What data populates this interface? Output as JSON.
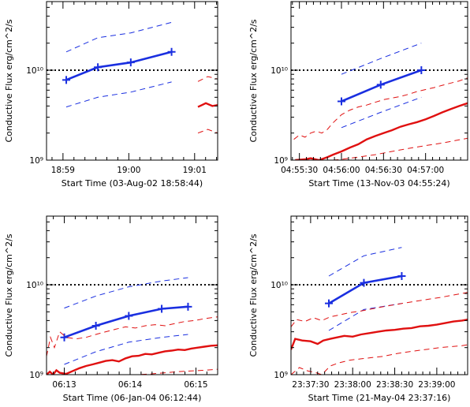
{
  "colors": {
    "axis": "#000000",
    "blue": "#1a2fe0",
    "red": "#e01010",
    "ref": "#000000"
  },
  "chart_data": [
    {
      "type": "line",
      "ylabel": "Conductive Flux erg/cm^2/s",
      "xlabel": "Start Time (03-Aug-02 18:58:44)",
      "y_scale": "log",
      "ylim": [
        1000000000.0,
        58000000000.0
      ],
      "y_ticks": [
        {
          "value": 1000000000.0,
          "label": "10⁹"
        },
        {
          "value": 10000000000.0,
          "label": "10¹⁰"
        }
      ],
      "xlim": [
        0,
        2.6
      ],
      "x_ticks": [
        {
          "value": 0.25,
          "label": "18:59"
        },
        {
          "value": 1.25,
          "label": "19:00"
        },
        {
          "value": 2.25,
          "label": "19:01"
        }
      ],
      "reference_line": 10000000000.0,
      "series": [
        {
          "style": "blue-solid-cross",
          "x": [
            0.3,
            0.78,
            1.28,
            1.9
          ],
          "values": [
            7800000000.0,
            10800000000.0,
            12200000000.0,
            16000000000.0
          ]
        },
        {
          "style": "blue-dashed",
          "x": [
            0.3,
            0.78,
            1.28,
            1.9
          ],
          "values": [
            16000000000.0,
            23000000000.0,
            26000000000.0,
            34000000000.0
          ]
        },
        {
          "style": "blue-dashed",
          "x": [
            0.3,
            0.78,
            1.28,
            1.9
          ],
          "values": [
            3900000000.0,
            5000000000.0,
            5700000000.0,
            7400000000.0
          ]
        },
        {
          "style": "red-solid",
          "x": [
            2.3,
            2.42,
            2.52,
            2.6
          ],
          "values": [
            3900000000.0,
            4300000000.0,
            4000000000.0,
            4100000000.0
          ]
        },
        {
          "style": "red-dashed",
          "x": [
            2.3,
            2.45,
            2.6
          ],
          "values": [
            7500000000.0,
            8500000000.0,
            8000000000.0
          ]
        },
        {
          "style": "red-dashed",
          "x": [
            2.3,
            2.45,
            2.6
          ],
          "values": [
            2000000000.0,
            2200000000.0,
            2000000000.0
          ]
        }
      ]
    },
    {
      "type": "line",
      "ylabel": "Conductive Flux erg/cm^2/s",
      "xlabel": "Start Time (13-Nov-03 04:55:24)",
      "y_scale": "log",
      "ylim": [
        1000000000.0,
        58000000000.0
      ],
      "y_ticks": [
        {
          "value": 1000000000.0,
          "label": "10⁹"
        },
        {
          "value": 10000000000.0,
          "label": "10¹⁰"
        }
      ],
      "xlim": [
        0,
        126
      ],
      "x_ticks": [
        {
          "value": 6,
          "label": "04:55:30"
        },
        {
          "value": 36,
          "label": "04:56:00"
        },
        {
          "value": 66,
          "label": "04:56:30"
        },
        {
          "value": 96,
          "label": "04:57:00"
        }
      ],
      "reference_line": 10000000000.0,
      "series": [
        {
          "style": "blue-solid-cross",
          "x": [
            36,
            64,
            93
          ],
          "values": [
            4500000000.0,
            6900000000.0,
            10000000000.0
          ]
        },
        {
          "style": "blue-dashed",
          "x": [
            36,
            64,
            93
          ],
          "values": [
            9000000000.0,
            13500000000.0,
            20000000000.0
          ]
        },
        {
          "style": "blue-dashed",
          "x": [
            36,
            64,
            93
          ],
          "values": [
            2300000000.0,
            3400000000.0,
            5000000000.0
          ]
        },
        {
          "style": "red-solid",
          "x": [
            3,
            10,
            14,
            20,
            26,
            30,
            36,
            42,
            48,
            54,
            60,
            66,
            72,
            78,
            84,
            90,
            96,
            102,
            108,
            114,
            120,
            126
          ],
          "values": [
            1000000000.0,
            1020000000.0,
            1050000000.0,
            1000000000.0,
            1080000000.0,
            1150000000.0,
            1250000000.0,
            1380000000.0,
            1500000000.0,
            1700000000.0,
            1850000000.0,
            2000000000.0,
            2150000000.0,
            2350000000.0,
            2500000000.0,
            2650000000.0,
            2850000000.0,
            3100000000.0,
            3400000000.0,
            3700000000.0,
            4000000000.0,
            4300000000.0
          ]
        },
        {
          "style": "red-dashed",
          "x": [
            2,
            6,
            10,
            14,
            18,
            22,
            26,
            30,
            36,
            42,
            48,
            54,
            60,
            66,
            72,
            78,
            84,
            90,
            96,
            102,
            108,
            114,
            120,
            126
          ],
          "values": [
            1700000000.0,
            1900000000.0,
            1800000000.0,
            2000000000.0,
            2100000000.0,
            2000000000.0,
            2200000000.0,
            2600000000.0,
            3200000000.0,
            3600000000.0,
            3900000000.0,
            4100000000.0,
            4400000000.0,
            4700000000.0,
            4900000000.0,
            5100000000.0,
            5400000000.0,
            5800000000.0,
            6100000000.0,
            6400000000.0,
            6800000000.0,
            7200000000.0,
            7600000000.0,
            8200000000.0
          ]
        },
        {
          "style": "red-dashed",
          "x": [
            3,
            8,
            14,
            20,
            26,
            30,
            36,
            48,
            60,
            72,
            84,
            96,
            108,
            120,
            126
          ],
          "values": [
            1000000000.0,
            1000000000.0,
            1000000000.0,
            1000000000.0,
            1000000000.0,
            1000000000.0,
            1020000000.0,
            1080000000.0,
            1150000000.0,
            1250000000.0,
            1350000000.0,
            1450000000.0,
            1550000000.0,
            1680000000.0,
            1750000000.0
          ]
        }
      ]
    },
    {
      "type": "line",
      "ylabel": "Conductive Flux erg/cm^2/s",
      "xlabel": "Start Time (06-Jan-04 06:12:44)",
      "y_scale": "log",
      "ylim": [
        1000000000.0,
        58000000000.0
      ],
      "y_ticks": [
        {
          "value": 1000000000.0,
          "label": "10⁹"
        },
        {
          "value": 10000000000.0,
          "label": "10¹⁰"
        }
      ],
      "xlim": [
        0,
        2.6
      ],
      "x_ticks": [
        {
          "value": 0.27,
          "label": "06:13"
        },
        {
          "value": 1.27,
          "label": "06:14"
        },
        {
          "value": 2.27,
          "label": "06:15"
        }
      ],
      "reference_line": 10000000000.0,
      "series": [
        {
          "style": "blue-solid-cross",
          "x": [
            0.27,
            0.75,
            1.25,
            1.75,
            2.15
          ],
          "values": [
            2600000000.0,
            3500000000.0,
            4500000000.0,
            5400000000.0,
            5700000000.0
          ]
        },
        {
          "style": "blue-dashed",
          "x": [
            0.27,
            0.75,
            1.25,
            1.75,
            2.15
          ],
          "values": [
            5500000000.0,
            7500000000.0,
            9500000000.0,
            11000000000.0,
            12000000000.0
          ]
        },
        {
          "style": "blue-dashed",
          "x": [
            0.27,
            0.75,
            1.25,
            1.75,
            2.15
          ],
          "values": [
            1300000000.0,
            1800000000.0,
            2300000000.0,
            2600000000.0,
            2800000000.0
          ]
        },
        {
          "style": "red-solid",
          "x": [
            0.0,
            0.05,
            0.1,
            0.15,
            0.2,
            0.3,
            0.4,
            0.5,
            0.6,
            0.7,
            0.8,
            0.9,
            1.0,
            1.1,
            1.2,
            1.3,
            1.4,
            1.5,
            1.6,
            1.7,
            1.8,
            1.9,
            2.0,
            2.1,
            2.2,
            2.3,
            2.4,
            2.5,
            2.6
          ],
          "values": [
            1000000000.0,
            1080000000.0,
            1000000000.0,
            1120000000.0,
            1050000000.0,
            1020000000.0,
            1100000000.0,
            1180000000.0,
            1250000000.0,
            1300000000.0,
            1360000000.0,
            1420000000.0,
            1450000000.0,
            1400000000.0,
            1520000000.0,
            1600000000.0,
            1620000000.0,
            1700000000.0,
            1680000000.0,
            1750000000.0,
            1820000000.0,
            1850000000.0,
            1900000000.0,
            1880000000.0,
            1950000000.0,
            2000000000.0,
            2050000000.0,
            2100000000.0,
            2120000000.0
          ]
        },
        {
          "style": "red-dashed",
          "x": [
            0.0,
            0.06,
            0.12,
            0.2,
            0.3,
            0.45,
            0.6,
            0.75,
            0.9,
            1.05,
            1.2,
            1.35,
            1.5,
            1.65,
            1.8,
            1.95,
            2.1,
            2.25,
            2.4,
            2.6
          ],
          "values": [
            1600000000.0,
            2600000000.0,
            2000000000.0,
            3000000000.0,
            2600000000.0,
            2500000000.0,
            2600000000.0,
            2800000000.0,
            3000000000.0,
            3200000000.0,
            3400000000.0,
            3300000000.0,
            3500000000.0,
            3600000000.0,
            3500000000.0,
            3700000000.0,
            3900000000.0,
            4000000000.0,
            4200000000.0,
            4400000000.0
          ]
        },
        {
          "style": "red-dashed",
          "x": [
            0.0,
            0.2,
            0.4,
            0.6,
            0.8,
            1.0,
            1.2,
            1.4,
            1.6,
            1.8,
            2.0,
            2.2,
            2.4,
            2.6
          ],
          "values": [
            1000000000.0,
            1000000000.0,
            1000000000.0,
            1000000000.0,
            1000000000.0,
            1000000000.0,
            1000000000.0,
            1000000000.0,
            1020000000.0,
            1050000000.0,
            1080000000.0,
            1100000000.0,
            1120000000.0,
            1150000000.0
          ]
        }
      ]
    },
    {
      "type": "line",
      "ylabel": "Conductive Flux erg/cm^2/s",
      "xlabel": "Start Time (21-May-04 23:37:16)",
      "y_scale": "log",
      "ylim": [
        1000000000.0,
        58000000000.0
      ],
      "y_ticks": [
        {
          "value": 1000000000.0,
          "label": "10⁹"
        },
        {
          "value": 10000000000.0,
          "label": "10¹⁰"
        }
      ],
      "xlim": [
        0,
        126
      ],
      "x_ticks": [
        {
          "value": 14,
          "label": "23:37:30"
        },
        {
          "value": 44,
          "label": "23:38:00"
        },
        {
          "value": 74,
          "label": "23:38:30"
        },
        {
          "value": 104,
          "label": "23:39:00"
        }
      ],
      "reference_line": 10000000000.0,
      "series": [
        {
          "style": "blue-solid-cross",
          "x": [
            27,
            52,
            79
          ],
          "values": [
            6200000000.0,
            10500000000.0,
            12500000000.0
          ]
        },
        {
          "style": "blue-dashed",
          "x": [
            27,
            52,
            79
          ],
          "values": [
            12500000000.0,
            21000000000.0,
            26000000000.0
          ]
        },
        {
          "style": "blue-dashed",
          "x": [
            27,
            52,
            79
          ],
          "values": [
            3100000000.0,
            5300000000.0,
            6200000000.0
          ]
        },
        {
          "style": "red-solid",
          "x": [
            0,
            3,
            8,
            14,
            19,
            23,
            28,
            33,
            38,
            44,
            50,
            56,
            62,
            68,
            74,
            80,
            86,
            92,
            98,
            104,
            110,
            116,
            122,
            126
          ],
          "values": [
            1900000000.0,
            2500000000.0,
            2400000000.0,
            2350000000.0,
            2200000000.0,
            2400000000.0,
            2500000000.0,
            2600000000.0,
            2700000000.0,
            2650000000.0,
            2800000000.0,
            2900000000.0,
            3000000000.0,
            3100000000.0,
            3150000000.0,
            3250000000.0,
            3300000000.0,
            3450000000.0,
            3500000000.0,
            3600000000.0,
            3750000000.0,
            3900000000.0,
            4000000000.0,
            4100000000.0
          ]
        },
        {
          "style": "red-dashed",
          "x": [
            0,
            4,
            10,
            16,
            22,
            28,
            34,
            42,
            50,
            58,
            66,
            74,
            82,
            90,
            98,
            106,
            114,
            122,
            126
          ],
          "values": [
            3400000000.0,
            4100000000.0,
            3900000000.0,
            4300000000.0,
            4000000000.0,
            4400000000.0,
            4600000000.0,
            4900000000.0,
            5100000000.0,
            5400000000.0,
            5700000000.0,
            6000000000.0,
            6300000000.0,
            6600000000.0,
            6900000000.0,
            7200000000.0,
            7600000000.0,
            8000000000.0,
            8200000000.0
          ]
        },
        {
          "style": "red-dashed",
          "x": [
            0,
            6,
            12,
            18,
            22,
            28,
            34,
            42,
            50,
            58,
            66,
            74,
            82,
            90,
            98,
            106,
            114,
            122,
            126
          ],
          "values": [
            1000000000.0,
            1200000000.0,
            1100000000.0,
            1050000000.0,
            1000000000.0,
            1250000000.0,
            1350000000.0,
            1450000000.0,
            1500000000.0,
            1550000000.0,
            1600000000.0,
            1700000000.0,
            1780000000.0,
            1850000000.0,
            1920000000.0,
            2000000000.0,
            2050000000.0,
            2100000000.0,
            2150000000.0
          ]
        }
      ]
    }
  ]
}
